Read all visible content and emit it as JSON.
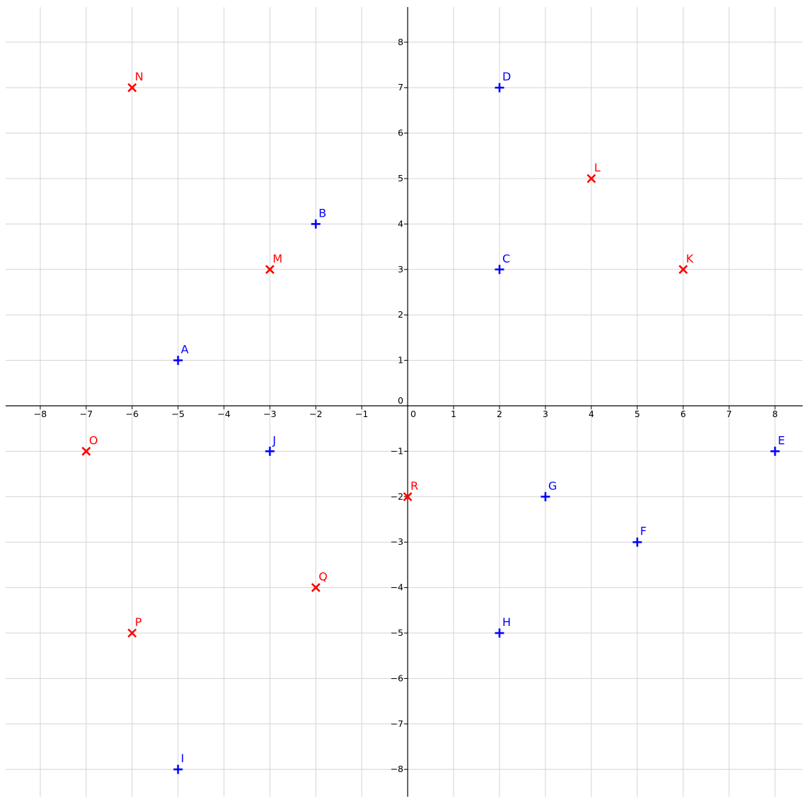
{
  "chart_data": {
    "type": "scatter",
    "xlim": [
      -8.8,
      8.6
    ],
    "ylim": [
      -8.6,
      8.8
    ],
    "grid": true,
    "x_ticks": [
      -8,
      -7,
      -6,
      -5,
      -4,
      -3,
      -2,
      -1,
      0,
      1,
      2,
      3,
      4,
      5,
      6,
      7,
      8
    ],
    "y_ticks": [
      -8,
      -7,
      -6,
      -5,
      -4,
      -3,
      -2,
      -1,
      0,
      1,
      2,
      3,
      4,
      5,
      6,
      7,
      8
    ],
    "series": [
      {
        "marker": "plus",
        "color": "#0000ff",
        "points": [
          {
            "label": "A",
            "x": -5,
            "y": 1
          },
          {
            "label": "B",
            "x": -2,
            "y": 4
          },
          {
            "label": "C",
            "x": 2,
            "y": 3
          },
          {
            "label": "D",
            "x": 2,
            "y": 7
          },
          {
            "label": "E",
            "x": 8,
            "y": -1
          },
          {
            "label": "F",
            "x": 5,
            "y": -3
          },
          {
            "label": "G",
            "x": 3,
            "y": -2
          },
          {
            "label": "H",
            "x": 2,
            "y": -5
          },
          {
            "label": "I",
            "x": -5,
            "y": -8
          },
          {
            "label": "J",
            "x": -3,
            "y": -1
          }
        ]
      },
      {
        "marker": "cross",
        "color": "#ff0000",
        "points": [
          {
            "label": "K",
            "x": 6,
            "y": 3
          },
          {
            "label": "L",
            "x": 4,
            "y": 5
          },
          {
            "label": "M",
            "x": -3,
            "y": 3
          },
          {
            "label": "N",
            "x": -6,
            "y": 7
          },
          {
            "label": "O",
            "x": -7,
            "y": -1
          },
          {
            "label": "P",
            "x": -6,
            "y": -5
          },
          {
            "label": "Q",
            "x": -2,
            "y": -4
          },
          {
            "label": "R",
            "x": 0,
            "y": -2
          }
        ]
      }
    ]
  }
}
